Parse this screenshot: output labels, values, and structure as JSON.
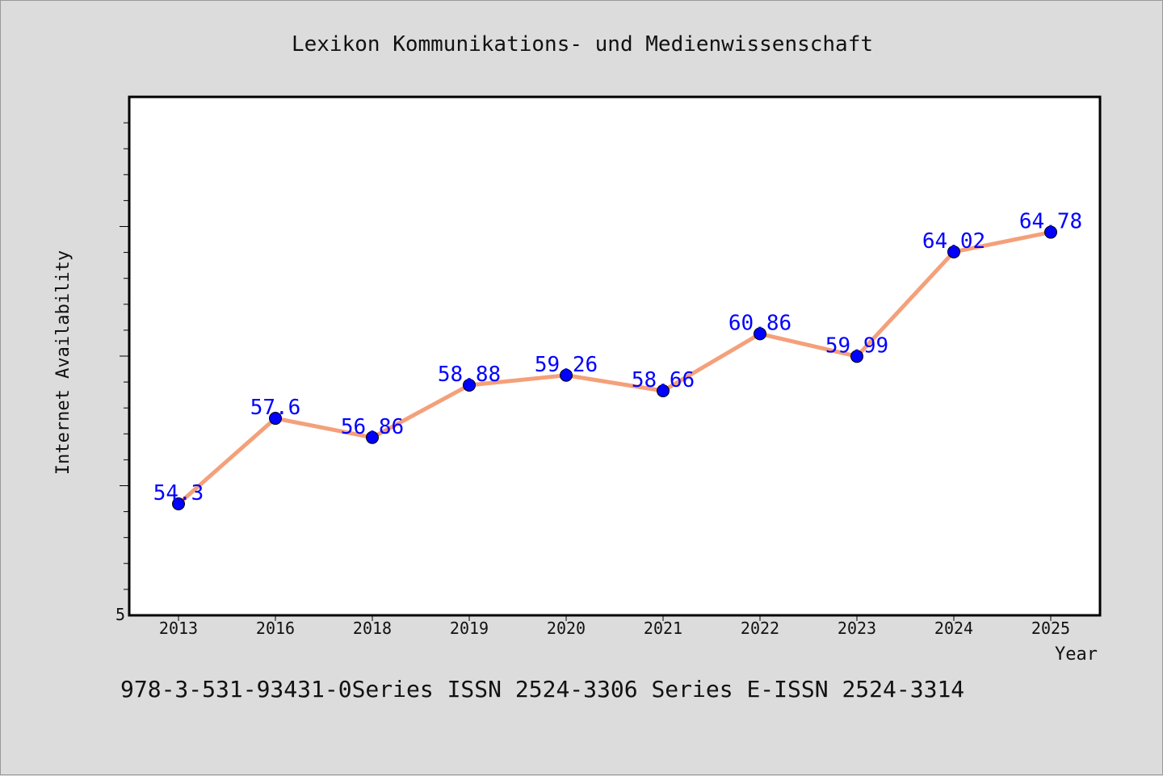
{
  "chart_data": {
    "type": "line",
    "title": "Lexikon Kommunikations- und Medienwissenschaft",
    "xlabel": "Year",
    "ylabel": "Internet Availability",
    "categories": [
      "2013",
      "2016",
      "2018",
      "2019",
      "2020",
      "2021",
      "2022",
      "2023",
      "2024",
      "2025"
    ],
    "series": [
      {
        "values": [
          54.3,
          57.6,
          56.86,
          58.88,
          59.26,
          58.66,
          60.86,
          59.99,
          64.02,
          64.78
        ]
      }
    ],
    "y_tick_labels": [
      "5"
    ],
    "ylim": [
      50,
      70
    ],
    "grid": false,
    "line_color": "#f4a07a",
    "marker_color": "#0000ff",
    "label_color": "#0000ff"
  },
  "footer_text": "978-3-531-93431-0Series ISSN 2524-3306 Series E-ISSN 2524-3314"
}
